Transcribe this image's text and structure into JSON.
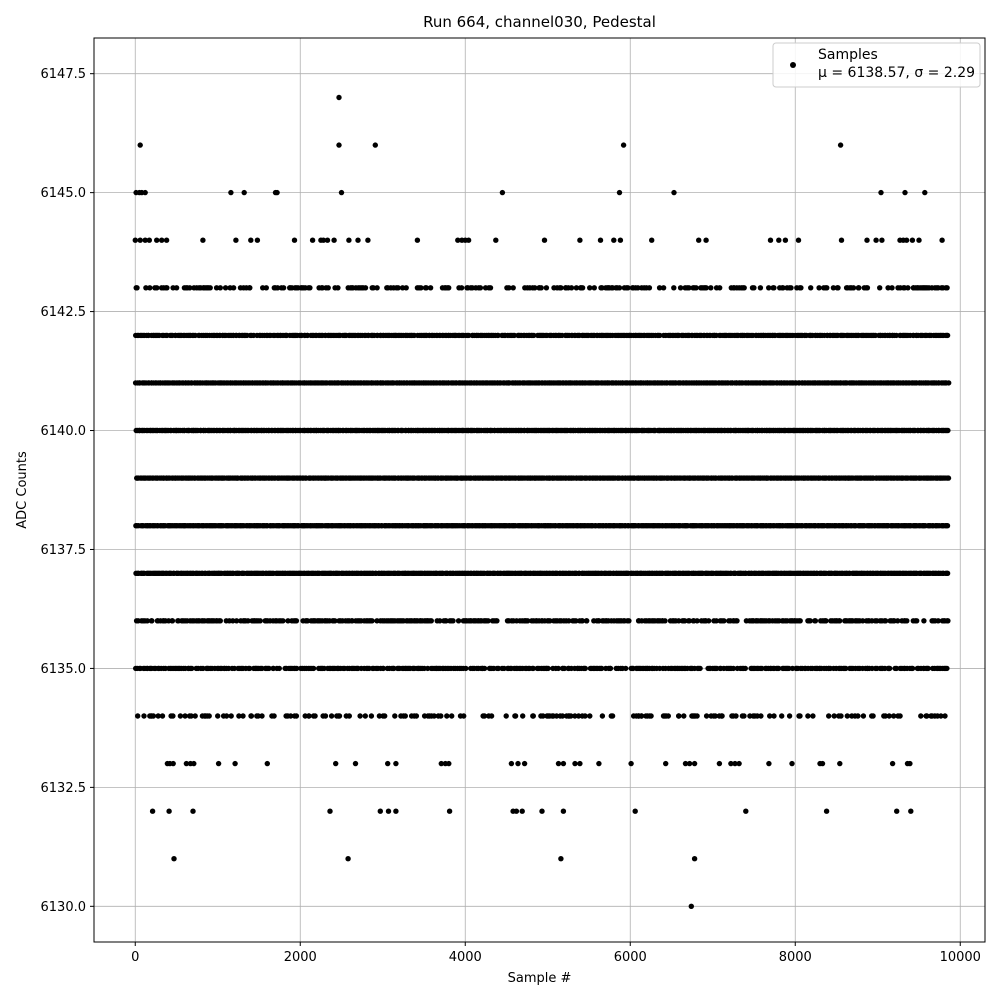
{
  "chart_data": {
    "type": "scatter",
    "title": "Run 664, channel030, Pedestal",
    "xlabel": "Sample #",
    "ylabel": "ADC Counts",
    "xlim": [
      -500,
      10300
    ],
    "ylim": [
      6129.25,
      6148.25
    ],
    "xticks": [
      0,
      2000,
      4000,
      6000,
      8000,
      10000
    ],
    "xtick_labels": [
      "0",
      "2000",
      "4000",
      "6000",
      "8000",
      "10000"
    ],
    "yticks": [
      6130.0,
      6132.5,
      6135.0,
      6137.5,
      6140.0,
      6142.5,
      6145.0,
      6147.5
    ],
    "ytick_labels": [
      "6130.0",
      "6132.5",
      "6135.0",
      "6137.5",
      "6140.0",
      "6142.5",
      "6145.0",
      "6147.5"
    ],
    "grid": true,
    "legend": {
      "placement": "top-right",
      "entries": [
        {
          "line1": "Samples",
          "line2": "μ = 6138.57, σ = 2.29"
        }
      ]
    },
    "marker_color": "#000000",
    "series": [
      {
        "name": "Samples",
        "x_range": [
          0,
          9850
        ],
        "n_points": 9850,
        "density_by_level": [
          {
            "y": 6130,
            "x": [
              6740
            ]
          },
          {
            "y": 6131,
            "x": [
              470,
              2580,
              5160,
              6780
            ]
          },
          {
            "y": 6132,
            "x": [
              210,
              410,
              700,
              2360,
              2970,
              3070,
              3160,
              3810,
              4580,
              4620,
              4690,
              4930,
              5190,
              6060,
              7400,
              8380,
              9230,
              9400
            ]
          },
          {
            "y": 6133,
            "x": [
              390,
              420,
              460,
              620,
              670,
              710,
              1010,
              1210,
              1600,
              2430,
              2670,
              3060,
              3160,
              3710,
              3760,
              3800,
              4560,
              4640,
              4720,
              5130,
              5190,
              5330,
              5390,
              5620,
              6010,
              6430,
              6670,
              6720,
              6780,
              7080,
              7220,
              7270,
              7320,
              7680,
              7960,
              8300,
              8330,
              8540,
              9180,
              9360,
              9390
            ]
          },
          {
            "y": 6134,
            "x": [
              220
            ]
          },
          {
            "y": 6144,
            "x": [
              0,
              60,
              120,
              170,
              260,
              320,
              380,
              820,
              1220,
              1400,
              1480,
              1930,
              2150,
              2250,
              2280,
              2330,
              2410,
              2590,
              2700,
              2820,
              3420,
              3910,
              3960,
              4000,
              4040,
              4370,
              4960,
              5390,
              5640,
              5800,
              5880,
              6260,
              6830,
              6920,
              7700,
              7800,
              7880,
              8040,
              8560,
              8870,
              8980,
              9050,
              9270,
              9310,
              9350,
              9420,
              9500,
              9780
            ]
          },
          {
            "y": 6145,
            "x": [
              10,
              50,
              80,
              120,
              1160,
              1320,
              1700,
              1720,
              2500,
              4450,
              5870,
              6530,
              9040,
              9330,
              9570
            ]
          },
          {
            "y": 6146,
            "x": [
              60,
              2470,
              2910,
              5920,
              8550
            ]
          },
          {
            "y": 6147,
            "x": [
              2470
            ]
          }
        ],
        "dense_levels": [
          6134,
          6135,
          6136,
          6137,
          6138,
          6139,
          6140,
          6141,
          6142,
          6143
        ],
        "dense_level_fill": [
          0.35,
          0.75,
          0.7,
          1.0,
          1.0,
          1.0,
          1.0,
          1.0,
          0.95,
          0.45
        ]
      }
    ]
  }
}
